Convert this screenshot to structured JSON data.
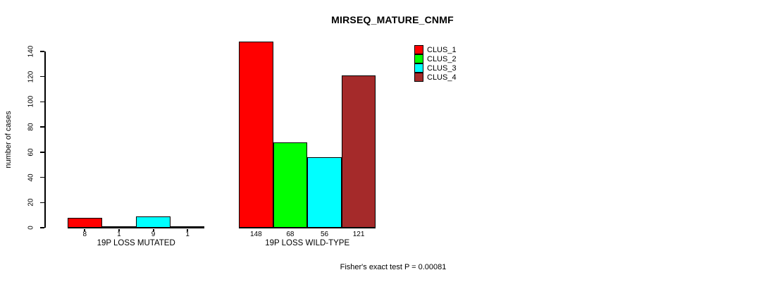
{
  "chart_data": {
    "type": "bar",
    "title": "MIRSEQ_MATURE_CNMF",
    "ylabel": "number of cases",
    "xlabel": "",
    "groups": [
      "19P LOSS MUTATED",
      "19P LOSS WILD-TYPE"
    ],
    "series": [
      {
        "name": "CLUS_1",
        "color": "#ff0000",
        "values": [
          8,
          148
        ]
      },
      {
        "name": "CLUS_2",
        "color": "#00ff00",
        "values": [
          1,
          68
        ]
      },
      {
        "name": "CLUS_3",
        "color": "#00ffff",
        "values": [
          9,
          56
        ]
      },
      {
        "name": "CLUS_4",
        "color": "#a52a2a",
        "values": [
          1,
          121
        ]
      }
    ],
    "bar_value_labels": [
      [
        "8",
        "1",
        "9",
        "1"
      ],
      [
        "148",
        "68",
        "56",
        "121"
      ]
    ],
    "yticks": [
      0,
      20,
      40,
      60,
      80,
      100,
      120,
      140
    ],
    "ylim": [
      0,
      140
    ],
    "grid": false,
    "legend_position": "top-right",
    "annotation": "Fisher's exact test P = 0.00081"
  }
}
